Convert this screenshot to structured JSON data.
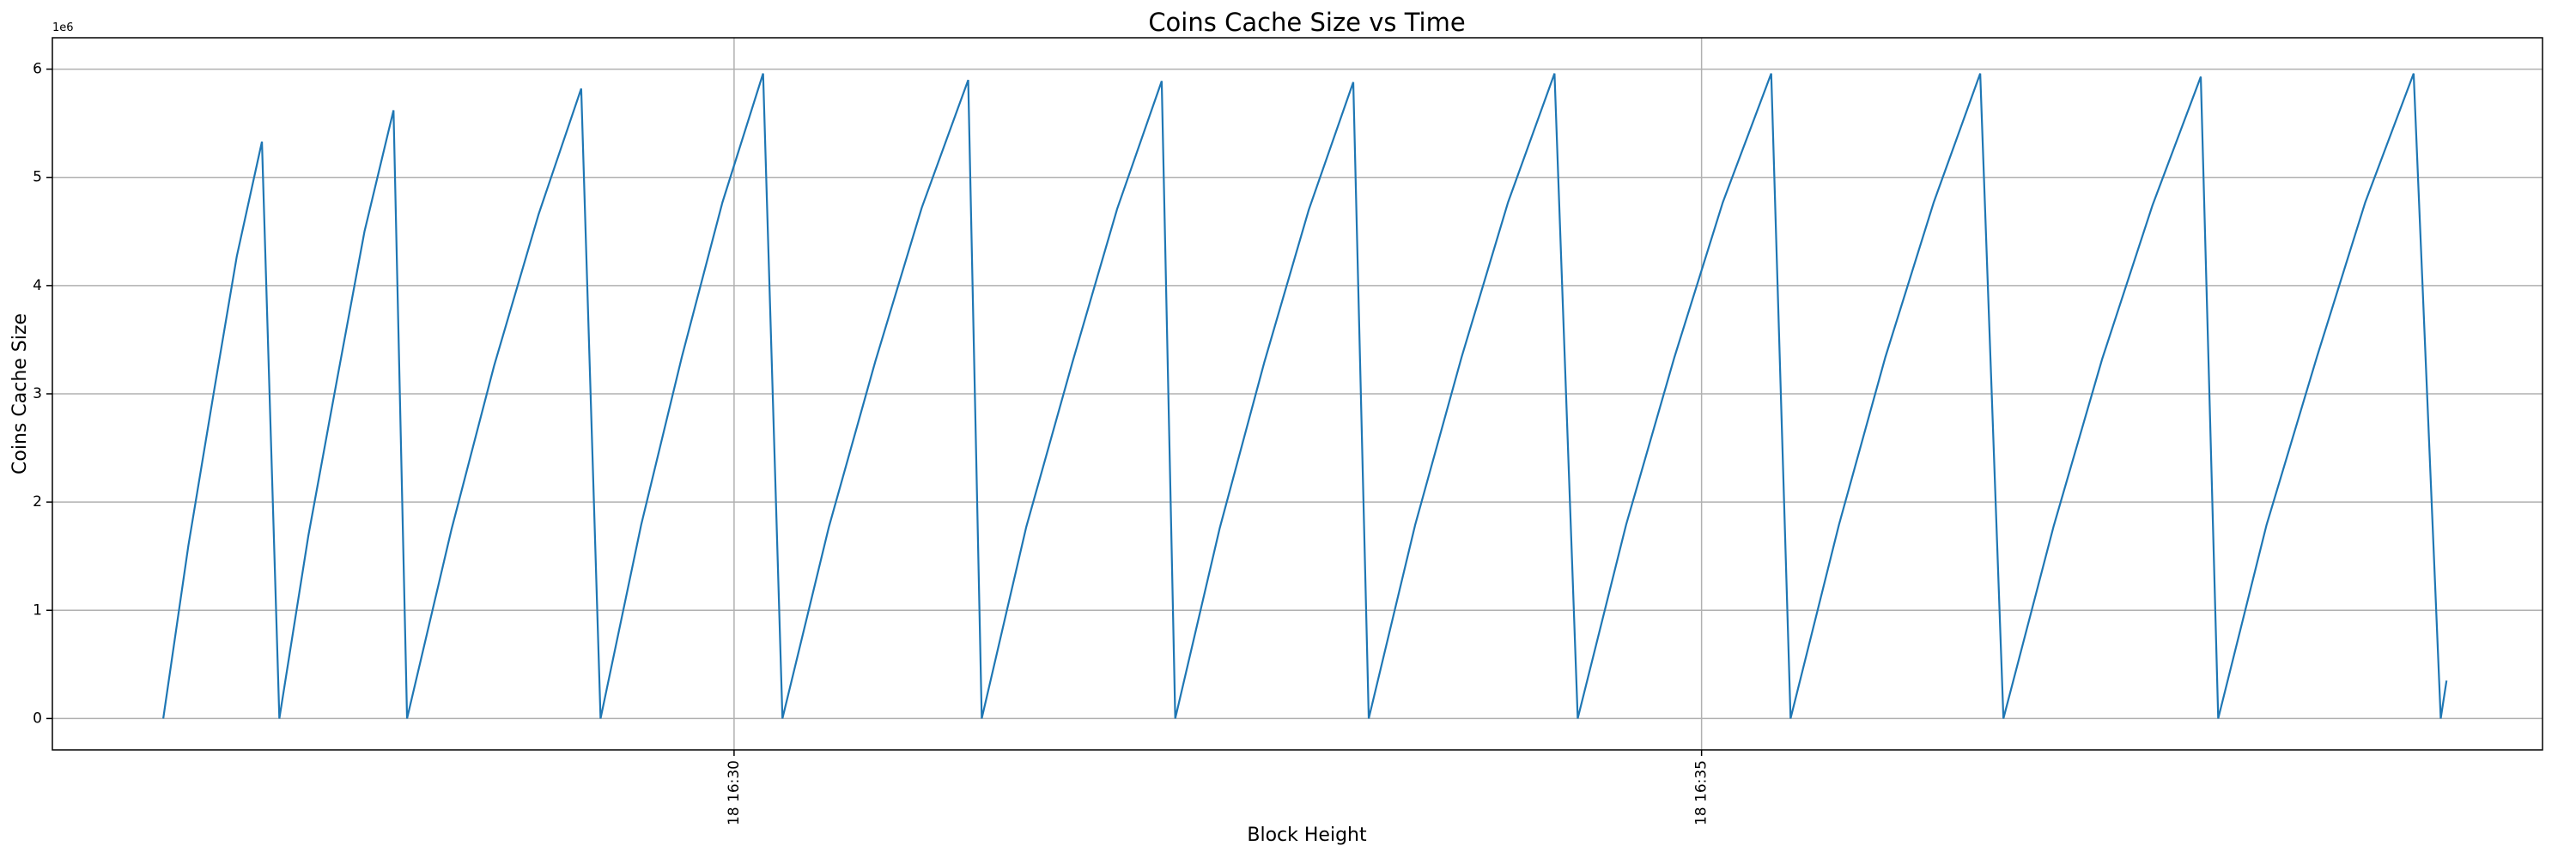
{
  "chart_data": {
    "type": "line",
    "title": "Coins Cache Size vs Time",
    "x_label": "Block Height",
    "y_label": "Coins Cache Size",
    "y_offset_label": "1e6",
    "x": [
      27.05,
      27.18,
      27.31,
      27.43,
      27.56,
      27.65,
      27.8,
      27.95,
      28.09,
      28.24,
      28.31,
      28.54,
      28.76,
      28.99,
      29.21,
      29.31,
      29.52,
      29.73,
      29.94,
      30.15,
      30.25,
      30.49,
      30.73,
      30.97,
      31.21,
      31.28,
      31.51,
      31.75,
      31.98,
      32.21,
      32.28,
      32.51,
      32.74,
      32.97,
      33.2,
      33.28,
      33.52,
      33.76,
      34.0,
      34.24,
      34.36,
      34.61,
      34.86,
      35.11,
      35.36,
      35.46,
      35.71,
      35.95,
      36.2,
      36.44,
      36.56,
      36.82,
      37.07,
      37.33,
      37.58,
      37.67,
      37.92,
      38.18,
      38.43,
      38.68,
      38.82,
      38.85
    ],
    "series": [
      {
        "name": "Coins Cache Size",
        "color": "#1f77b4",
        "values": [
          0,
          1600000,
          3000000,
          4270000,
          5330000,
          0,
          1690000,
          3150000,
          4500000,
          5620000,
          0,
          1750000,
          3260000,
          4660000,
          5820000,
          0,
          1790000,
          3340000,
          4770000,
          5960000,
          0,
          1770000,
          3300000,
          4720000,
          5900000,
          0,
          1770000,
          3300000,
          4710000,
          5890000,
          0,
          1760000,
          3290000,
          4700000,
          5880000,
          0,
          1790000,
          3340000,
          4770000,
          5960000,
          0,
          1790000,
          3340000,
          4770000,
          5960000,
          0,
          1790000,
          3340000,
          4770000,
          5960000,
          0,
          1780000,
          3320000,
          4740000,
          5930000,
          0,
          1790000,
          3340000,
          4770000,
          5960000,
          0,
          350000
        ]
      }
    ],
    "xlim": [
      26.477,
      39.346
    ],
    "xticks": [
      {
        "value": 30,
        "label": "18 16:30"
      },
      {
        "value": 35,
        "label": "18 16:35"
      }
    ],
    "ylim": [
      -290000,
      6290000
    ],
    "yticks": [
      {
        "value": 0,
        "label": "0"
      },
      {
        "value": 1000000,
        "label": "1"
      },
      {
        "value": 2000000,
        "label": "2"
      },
      {
        "value": 3000000,
        "label": "3"
      },
      {
        "value": 4000000,
        "label": "4"
      },
      {
        "value": 5000000,
        "label": "5"
      },
      {
        "value": 6000000,
        "label": "6"
      }
    ],
    "grid": true
  }
}
